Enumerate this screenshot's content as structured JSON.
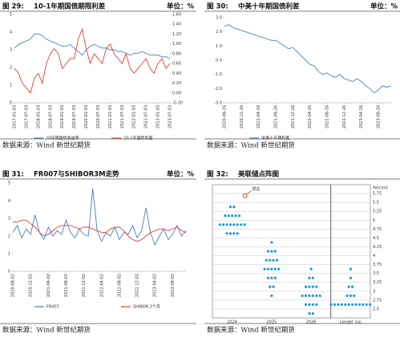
{
  "chart_data": [
    {
      "type": "line",
      "figure": "图 29:",
      "title": "10-1年期国债期限利差",
      "unit": "单位：%",
      "source": "数据来源：Wind 新世纪期货",
      "categories": [
        "2017-01-03",
        null,
        null,
        "2017-07-03",
        null,
        null,
        "2018-01-03",
        null,
        null,
        "2018-07-03",
        null,
        null,
        "2019-01-03",
        null,
        null,
        "2019-07-03",
        null,
        null,
        "2020-01-03",
        null,
        null,
        "2020-07-03",
        null,
        null,
        "2021-01-03",
        null,
        null,
        "2021-07-03",
        null,
        null,
        "2022-01-03",
        null,
        null,
        "2022-07-03",
        null,
        null,
        "2023-01-03",
        null,
        null,
        "2023-07-03"
      ],
      "series": [
        {
          "name": "10年期国债收益率",
          "color": "#4a7ebb",
          "values": [
            3.1,
            3.3,
            3.4,
            3.5,
            3.6,
            3.9,
            3.9,
            3.8,
            3.6,
            3.5,
            3.4,
            3.3,
            3.2,
            3.2,
            3.3,
            3.1,
            2.9,
            2.7,
            3.0,
            3.2,
            3.3,
            3.2,
            3.1,
            3.1,
            3.0,
            3.0,
            2.9,
            2.9,
            2.8,
            2.7,
            2.8,
            2.8,
            2.9,
            2.8,
            2.7,
            2.7,
            2.7,
            2.6,
            2.6,
            2.5
          ]
        },
        {
          "name": "10-1年国债利差",
          "color": "#d9423b",
          "axis": "y2",
          "values": [
            0.5,
            0.4,
            0.2,
            0.1,
            0.0,
            0.3,
            0.4,
            0.2,
            0.6,
            0.8,
            0.9,
            0.8,
            0.5,
            0.6,
            0.7,
            0.7,
            1.1,
            1.3,
            0.9,
            0.6,
            0.8,
            0.7,
            0.6,
            0.9,
            1.0,
            0.8,
            0.7,
            0.6,
            0.8,
            0.5,
            0.4,
            0.5,
            0.6,
            0.7,
            0.5,
            0.4,
            0.6,
            0.7,
            0.5,
            0.6
          ]
        }
      ],
      "ylim": [
        0,
        5
      ],
      "yticks": [
        0,
        1,
        2,
        3,
        4,
        5
      ],
      "y2lim": [
        -0.2,
        1.6
      ],
      "y2ticks": [
        {
          "value": -0.2,
          "label": "-0.20"
        },
        {
          "value": 0,
          "label": "0.00"
        },
        {
          "value": 0.2,
          "label": "0.20"
        },
        {
          "value": 0.4,
          "label": "0.40"
        },
        {
          "value": 0.6,
          "label": "0.60"
        },
        {
          "value": 0.8,
          "label": "0.80"
        },
        {
          "value": 1,
          "label": "1.00"
        },
        {
          "value": 1.2,
          "label": "1.20"
        },
        {
          "value": 1.4,
          "label": "1.40"
        },
        {
          "value": 1.6,
          "label": "1.60"
        }
      ],
      "legend": "bottom"
    },
    {
      "type": "line",
      "figure": "图 30:",
      "title": "中美十年期国债利差",
      "unit": "单位：%",
      "source": "数据来源：Wind 新世纪期货",
      "categories": [
        "2020-08-26",
        null,
        null,
        null,
        "2020-12-26",
        null,
        null,
        null,
        "2021-04-26",
        null,
        null,
        null,
        "2021-08-26",
        null,
        null,
        null,
        "2021-12-26",
        null,
        null,
        null,
        "2022-04-26",
        null,
        null,
        null,
        "2022-08-26",
        null,
        null,
        null,
        "2022-12-26",
        null,
        null,
        null,
        "2023-04-26",
        null,
        null,
        null,
        "2023-08-26",
        null,
        null,
        null
      ],
      "series": [
        {
          "name": "中美十年期利差",
          "color": "#4a7ebb",
          "values": [
            2.4,
            2.5,
            2.3,
            2.2,
            2.1,
            2.0,
            1.9,
            1.8,
            1.7,
            1.6,
            1.5,
            1.4,
            1.4,
            1.2,
            1.0,
            0.8,
            0.9,
            0.6,
            0.3,
            0.0,
            -0.3,
            -0.4,
            -0.8,
            -1.0,
            -0.9,
            -1.1,
            -1.2,
            -1.0,
            -1.3,
            -1.4,
            -1.5,
            -1.3,
            -1.5,
            -1.8,
            -2.0,
            -2.3,
            -2.1,
            -1.8,
            -1.9,
            -1.8
          ]
        }
      ],
      "ylim": [
        -3,
        3
      ],
      "yticks": [
        {
          "value": 3,
          "label": "3.0"
        },
        {
          "value": 2,
          "label": "2.0"
        },
        {
          "value": 1,
          "label": "1.0"
        },
        {
          "value": 0,
          "label": "0.0"
        },
        {
          "value": -1,
          "label": "-1.0"
        },
        {
          "value": -2,
          "label": "-2.0"
        },
        {
          "value": -3,
          "label": "-3.0"
        }
      ],
      "legend": "bottom"
    },
    {
      "type": "line",
      "figure": "图 31:",
      "title": "FR007与SHIBOR3M走势",
      "unit": "单位：%",
      "source": "数据来源：Wind 新世纪期货",
      "categories": [
        "2020-08-02",
        null,
        null,
        null,
        "2020-12-02",
        null,
        null,
        null,
        "2021-04-02",
        null,
        null,
        null,
        "2021-08-02",
        null,
        null,
        null,
        "2021-12-02",
        null,
        null,
        null,
        "2022-04-02",
        null,
        null,
        null,
        "2022-08-02",
        null,
        null,
        null,
        "2022-12-02",
        null,
        null,
        null,
        "2023-04-02",
        null,
        null,
        null,
        "2023-08-02",
        null,
        null,
        null
      ],
      "series": [
        {
          "name": "FR007",
          "color": "#4a7ebb",
          "values": [
            2.2,
            2.6,
            1.9,
            2.4,
            2.1,
            3.2,
            2.2,
            1.8,
            2.5,
            2.0,
            2.3,
            2.1,
            2.9,
            2.2,
            1.9,
            2.4,
            2.1,
            2.0,
            4.7,
            2.3,
            1.7,
            2.2,
            2.0,
            2.5,
            1.8,
            2.2,
            2.1,
            2.6,
            1.9,
            2.3,
            3.6,
            2.2,
            1.5,
            2.0,
            2.4,
            1.8,
            2.1,
            2.6,
            2.0,
            2.3
          ]
        },
        {
          "name": "SHIBOR:3个月",
          "color": "#d9423b",
          "values": [
            2.8,
            2.8,
            2.9,
            2.9,
            2.7,
            2.5,
            2.2,
            2.0,
            2.1,
            2.3,
            2.5,
            2.6,
            2.6,
            2.6,
            2.5,
            2.4,
            2.5,
            2.5,
            2.4,
            2.3,
            2.2,
            2.2,
            2.4,
            2.5,
            2.5,
            2.3,
            2.0,
            1.8,
            1.7,
            1.8,
            2.0,
            2.2,
            2.3,
            2.4,
            2.4,
            2.3,
            2.4,
            2.5,
            2.3,
            2.2
          ]
        }
      ],
      "ylim": [
        0,
        5
      ],
      "yticks": [
        0,
        1,
        2,
        3,
        4,
        5
      ],
      "legend": "bottom"
    },
    {
      "type": "dot",
      "figure": "图 32:",
      "title": "美联储点阵图",
      "source": "数据来源：Wind 新世纪期货",
      "y_label": "Percent",
      "categories": [
        "2024",
        "2025",
        "2026",
        "Longer run"
      ],
      "dots": [
        [
          5.375,
          5.375,
          5.125,
          5.125,
          5.125,
          5.125,
          5.125,
          4.875,
          4.875,
          4.875,
          4.875,
          4.875,
          4.875,
          4.875,
          4.875,
          4.625,
          4.625,
          4.625,
          4.625
        ],
        [
          4.375,
          4.125,
          4.125,
          4.125,
          3.875,
          3.875,
          3.875,
          3.875,
          3.625,
          3.625,
          3.625,
          3.625,
          3.625,
          3.375,
          3.375,
          3.375,
          3.125,
          3.125,
          2.875
        ],
        [
          3.625,
          3.375,
          3.375,
          3.125,
          3.125,
          3.125,
          3.125,
          2.875,
          2.875,
          2.875,
          2.875,
          2.875,
          2.875,
          2.625,
          2.625,
          2.625,
          2.625,
          2.375,
          2.375
        ],
        [
          3.625,
          3.375,
          3.125,
          3.125,
          2.875,
          2.875,
          2.875,
          2.625,
          2.625,
          2.625,
          2.625,
          2.625,
          2.625,
          2.625,
          2.625,
          2.625,
          2.625,
          2.625,
          2.625
        ]
      ],
      "current": {
        "label": "现在",
        "value": 5.375
      },
      "ylim": [
        2.25,
        6
      ],
      "yticks": [
        2.5,
        2.75,
        3,
        3.25,
        3.5,
        3.75,
        4,
        4.25,
        4.5,
        4.75,
        5,
        5.25,
        5.5,
        5.75
      ],
      "grid": true
    }
  ]
}
